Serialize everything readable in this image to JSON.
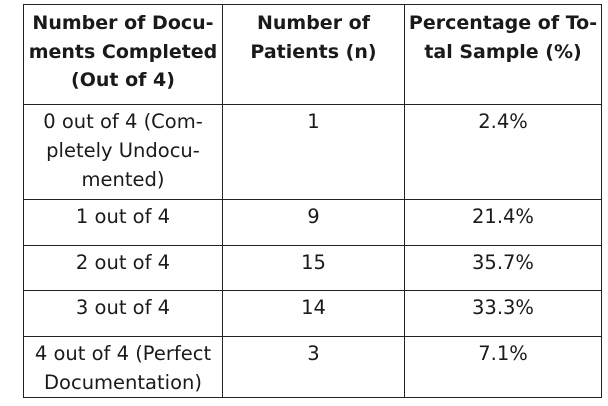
{
  "table": {
    "headers": [
      [
        "Number of Docu-",
        "ments Completed",
        "(Out of 4)"
      ],
      [
        "Number of",
        "Patients (n)"
      ],
      [
        "Percentage of To-",
        "tal Sample (%)"
      ]
    ],
    "rows": [
      {
        "documents": [
          "0 out of 4 (Com-",
          "pletely Undocu-",
          "mented)"
        ],
        "patients": "1",
        "percentage": "2.4%"
      },
      {
        "documents": [
          "1 out of 4"
        ],
        "patients": "9",
        "percentage": "21.4%"
      },
      {
        "documents": [
          "2 out of 4"
        ],
        "patients": "15",
        "percentage": "35.7%"
      },
      {
        "documents": [
          "3 out of 4"
        ],
        "patients": "14",
        "percentage": "33.3%"
      },
      {
        "documents": [
          "4 out of 4 (Perfect",
          "Documentation)"
        ],
        "patients": "3",
        "percentage": "7.1%"
      }
    ]
  }
}
